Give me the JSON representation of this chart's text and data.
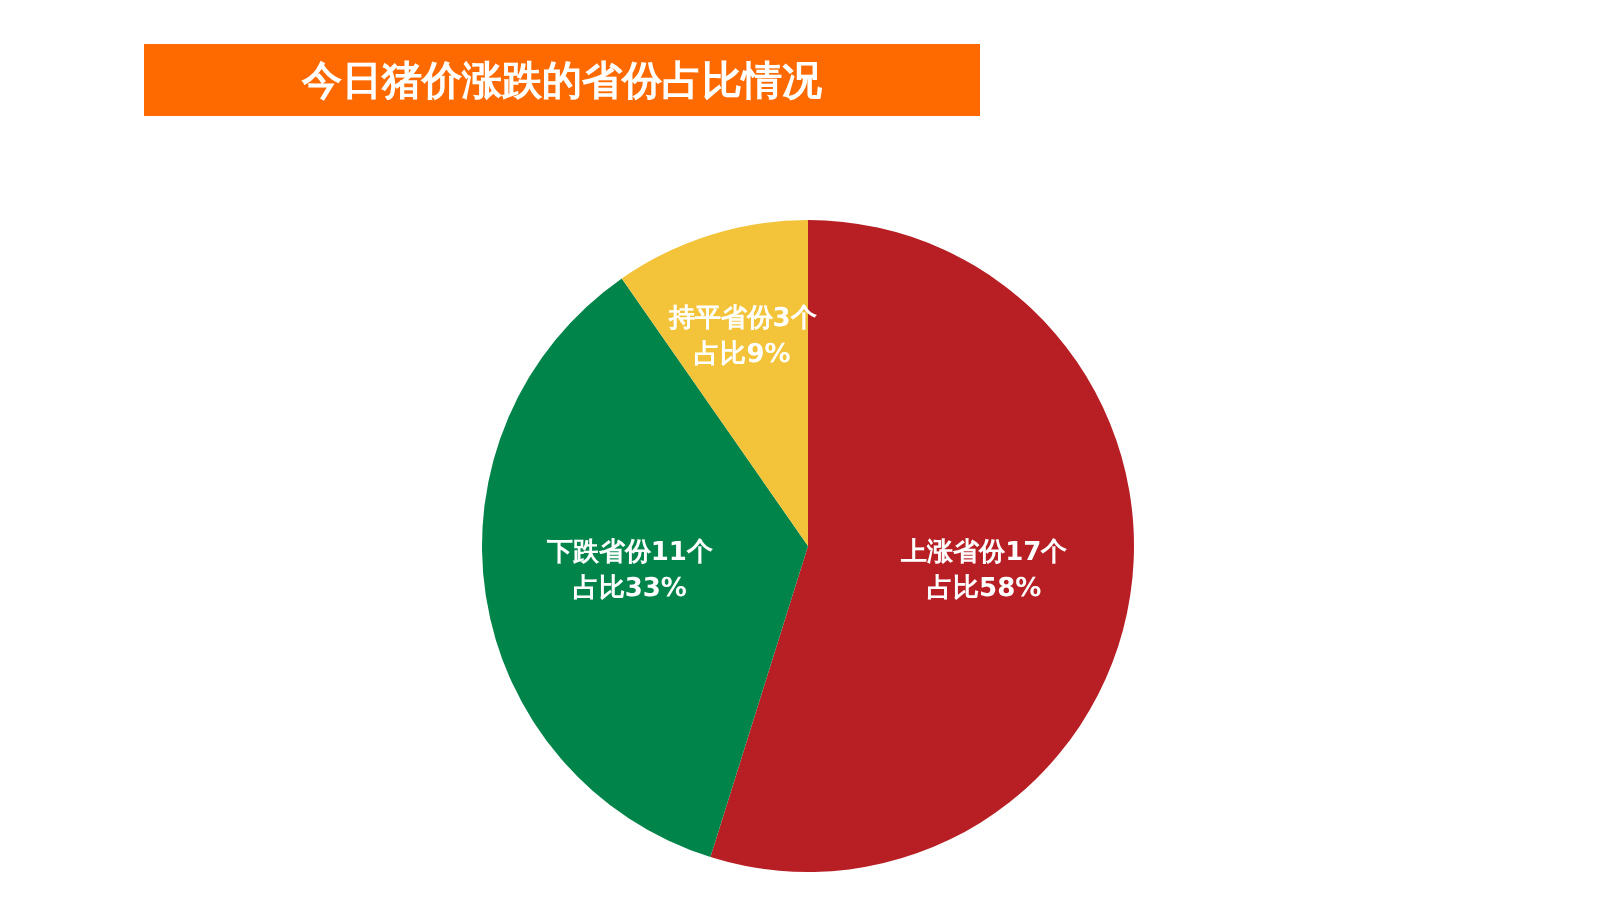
{
  "chart_data": {
    "type": "pie",
    "title": "今日猪价涨跌的省份占比情况",
    "categories": [
      null,
      null,
      null
    ],
    "values": [
      17,
      11,
      3
    ],
    "colors": [
      "#b81f24",
      "#00844a",
      "#f3c43a"
    ],
    "value_labels": [
      "上涨省份17个占比58%",
      "下跌省份11个占比33%",
      "持平省份3个占比9%"
    ],
    "legend": false
  }
}
